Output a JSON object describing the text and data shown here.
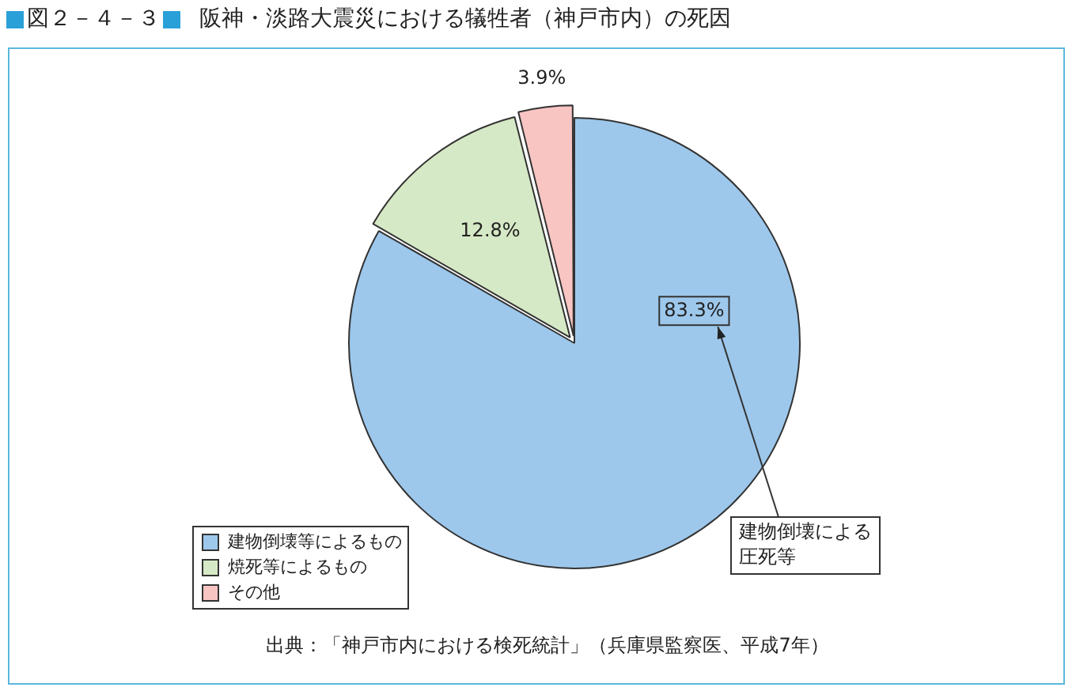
{
  "chart_data": {
    "type": "pie",
    "title": "図２－４－３",
    "subtitle": "阪神・淡路大震災における犠牲者（神戸市内）の死因",
    "categories": [
      "建物倒壊等によるもの",
      "焼死等によるもの",
      "その他"
    ],
    "values": [
      83.3,
      12.8,
      3.9
    ],
    "colors": [
      "#9dc8ec",
      "#d6e9c6",
      "#f8c5c3"
    ],
    "value_labels": [
      "83.3%",
      "12.8%",
      "3.9%"
    ],
    "legend": "bottom left",
    "annotations": [
      "建物倒壊による圧死等",
      "出典：「神戸市内における検死統計」（兵庫県監察医、平成7年）"
    ]
  }
}
